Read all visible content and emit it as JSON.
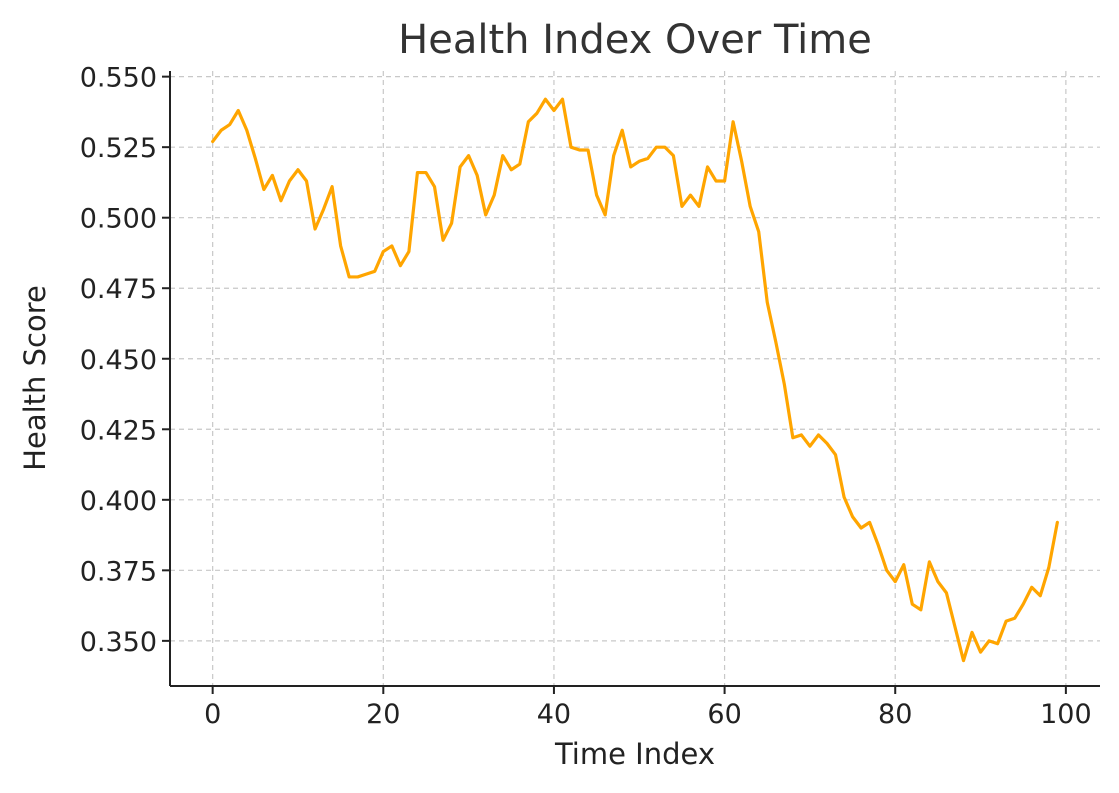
{
  "chart_data": {
    "type": "line",
    "title": "Health Index Over Time",
    "xlabel": "Time Index",
    "ylabel": "Health Score",
    "xlim": [
      -5,
      104
    ],
    "ylim": [
      0.334,
      0.552
    ],
    "xticks": [
      0,
      20,
      40,
      60,
      80,
      100
    ],
    "yticks": [
      0.35,
      0.375,
      0.4,
      0.425,
      0.45,
      0.475,
      0.5,
      0.525,
      0.55
    ],
    "xtick_labels": [
      "0",
      "20",
      "40",
      "60",
      "80",
      "100"
    ],
    "ytick_labels": [
      "0.350",
      "0.375",
      "0.400",
      "0.425",
      "0.450",
      "0.475",
      "0.500",
      "0.525",
      "0.550"
    ],
    "grid": true,
    "line_color": "#FFA500",
    "series": [
      {
        "x": [
          0,
          1,
          2,
          3,
          4,
          5,
          6,
          7,
          8,
          9,
          10,
          11,
          12,
          13,
          14,
          15,
          16,
          17,
          18,
          19,
          20,
          21,
          22,
          23,
          24,
          25,
          26,
          27,
          28,
          29,
          30,
          31,
          32,
          33,
          34,
          35,
          36,
          37,
          38,
          39,
          40,
          41,
          42,
          43,
          44,
          45,
          46,
          47,
          48,
          49,
          50,
          51,
          52,
          53,
          54,
          55,
          56,
          57,
          58,
          59,
          60,
          61,
          62,
          63,
          64,
          65,
          66,
          67,
          68,
          69,
          70,
          71,
          72,
          73,
          74,
          75,
          76,
          77,
          78,
          79,
          80,
          81,
          82,
          83,
          84,
          85,
          86,
          87,
          88,
          89,
          90,
          91,
          92,
          93,
          94,
          95,
          96,
          97,
          98,
          99
        ],
        "values": [
          0.527,
          0.531,
          0.533,
          0.538,
          0.531,
          0.521,
          0.51,
          0.515,
          0.506,
          0.513,
          0.517,
          0.513,
          0.496,
          0.503,
          0.511,
          0.49,
          0.479,
          0.479,
          0.48,
          0.481,
          0.488,
          0.49,
          0.483,
          0.488,
          0.516,
          0.516,
          0.511,
          0.492,
          0.498,
          0.518,
          0.522,
          0.515,
          0.501,
          0.508,
          0.522,
          0.517,
          0.519,
          0.534,
          0.537,
          0.542,
          0.538,
          0.542,
          0.525,
          0.524,
          0.524,
          0.508,
          0.501,
          0.522,
          0.531,
          0.518,
          0.52,
          0.521,
          0.525,
          0.525,
          0.522,
          0.504,
          0.508,
          0.504,
          0.518,
          0.513,
          0.513,
          0.534,
          0.52,
          0.504,
          0.495,
          0.47,
          0.456,
          0.441,
          0.422,
          0.423,
          0.419,
          0.423,
          0.42,
          0.416,
          0.401,
          0.394,
          0.39,
          0.392,
          0.384,
          0.375,
          0.371,
          0.377,
          0.363,
          0.361,
          0.378,
          0.371,
          0.367,
          0.355,
          0.343,
          0.353,
          0.346,
          0.35,
          0.349,
          0.357,
          0.358,
          0.363,
          0.369,
          0.366,
          0.376,
          0.392
        ]
      }
    ]
  }
}
